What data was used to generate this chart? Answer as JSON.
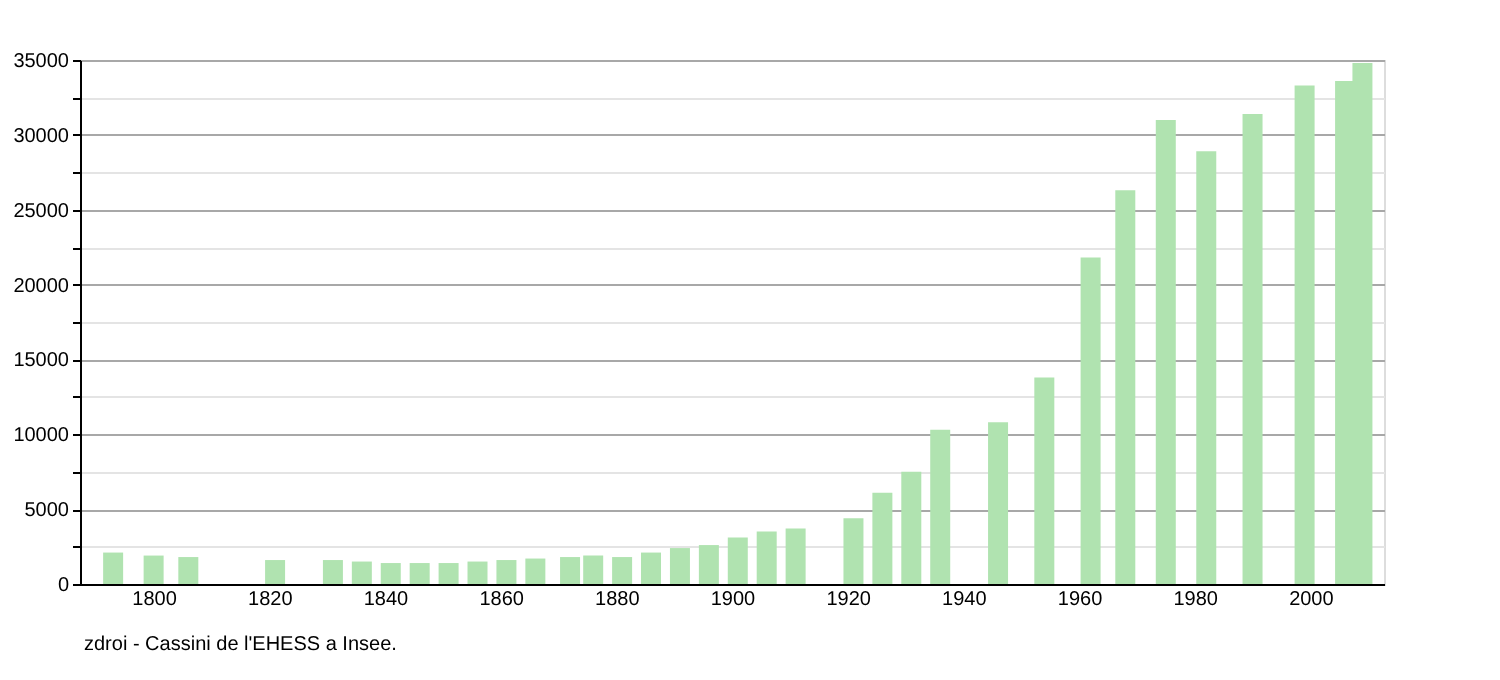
{
  "chart_data": {
    "type": "bar",
    "color": "#b0e3b0",
    "x": [
      1793,
      1800,
      1806,
      1821,
      1831,
      1836,
      1841,
      1846,
      1851,
      1856,
      1861,
      1866,
      1872,
      1876,
      1881,
      1886,
      1891,
      1896,
      1901,
      1906,
      1911,
      1921,
      1926,
      1931,
      1936,
      1946,
      1954,
      1962,
      1968,
      1975,
      1982,
      1990,
      1999,
      2006,
      2009
    ],
    "values": [
      2100,
      1900,
      1800,
      1600,
      1600,
      1500,
      1400,
      1400,
      1400,
      1500,
      1600,
      1700,
      1800,
      1900,
      1800,
      2100,
      2400,
      2600,
      3100,
      3500,
      3700,
      4400,
      6100,
      7500,
      10300,
      10800,
      13800,
      21800,
      26300,
      31000,
      28900,
      31400,
      33300,
      33600,
      34800
    ],
    "xlim": [
      1789,
      2011
    ],
    "xticks": [
      1800,
      1820,
      1840,
      1860,
      1880,
      1900,
      1920,
      1940,
      1960,
      1980,
      2000
    ],
    "ylim": [
      0,
      35000
    ],
    "yticks": [
      0,
      {
        "value": 2500,
        "label": null
      },
      5000,
      {
        "value": 7500,
        "label": null
      },
      10000,
      {
        "value": 12500,
        "label": null
      },
      15000,
      {
        "value": 17500,
        "label": null
      },
      20000,
      {
        "value": 22500,
        "label": null
      },
      25000,
      {
        "value": 27500,
        "label": null
      },
      30000,
      {
        "value": 32500,
        "label": null
      },
      35000
    ],
    "grid": "y",
    "annotations": [
      "zdroi - Cassini de l'EHESS a Insee."
    ]
  }
}
